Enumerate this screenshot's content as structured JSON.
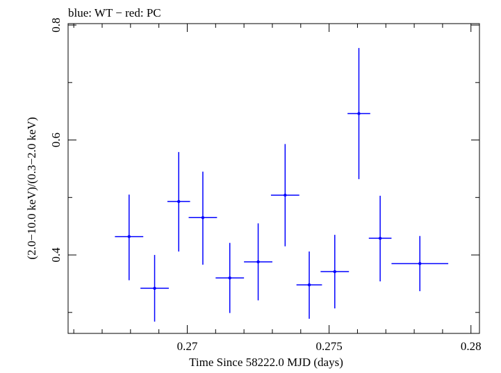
{
  "chart_data": {
    "type": "scatter",
    "title": "blue: WT − red: PC",
    "xlabel": "Time Since 58222.0 MJD (days)",
    "ylabel": "(2.0−10.0 keV)/(0.3−2.0 keV)",
    "xlim": [
      0.2658,
      0.2803
    ],
    "ylim": [
      0.2635,
      0.8025
    ],
    "x_ticks": [
      {
        "value": 0.27,
        "label": "0.27"
      },
      {
        "value": 0.275,
        "label": "0.275"
      },
      {
        "value": 0.28,
        "label": "0.28"
      }
    ],
    "x_minor_ticks": [
      0.266,
      0.267,
      0.268,
      0.269,
      0.271,
      0.272,
      0.273,
      0.274,
      0.276,
      0.277,
      0.278,
      0.279
    ],
    "y_ticks": [
      {
        "value": 0.4,
        "label": "0.4"
      },
      {
        "value": 0.6,
        "label": "0.6"
      },
      {
        "value": 0.8,
        "label": "0.8"
      }
    ],
    "y_minor_ticks": [
      0.3,
      0.5,
      0.7
    ],
    "grid": false,
    "legend": "none",
    "series": [
      {
        "name": "WT",
        "color": "#0000ff",
        "points": [
          {
            "x": 0.26795,
            "y": 0.432,
            "x_lo": 0.26745,
            "x_hi": 0.26845,
            "y_lo": 0.356,
            "y_hi": 0.505
          },
          {
            "x": 0.26885,
            "y": 0.342,
            "x_lo": 0.26835,
            "x_hi": 0.26935,
            "y_lo": 0.284,
            "y_hi": 0.4
          },
          {
            "x": 0.2697,
            "y": 0.493,
            "x_lo": 0.2693,
            "x_hi": 0.2701,
            "y_lo": 0.406,
            "y_hi": 0.579
          },
          {
            "x": 0.27055,
            "y": 0.465,
            "x_lo": 0.27005,
            "x_hi": 0.27105,
            "y_lo": 0.383,
            "y_hi": 0.545
          },
          {
            "x": 0.2715,
            "y": 0.36,
            "x_lo": 0.271,
            "x_hi": 0.272,
            "y_lo": 0.299,
            "y_hi": 0.421
          },
          {
            "x": 0.2725,
            "y": 0.388,
            "x_lo": 0.272,
            "x_hi": 0.273,
            "y_lo": 0.321,
            "y_hi": 0.455
          },
          {
            "x": 0.27345,
            "y": 0.504,
            "x_lo": 0.27295,
            "x_hi": 0.27395,
            "y_lo": 0.415,
            "y_hi": 0.593
          },
          {
            "x": 0.2743,
            "y": 0.348,
            "x_lo": 0.27385,
            "x_hi": 0.27475,
            "y_lo": 0.289,
            "y_hi": 0.406
          },
          {
            "x": 0.2752,
            "y": 0.371,
            "x_lo": 0.2747,
            "x_hi": 0.2757,
            "y_lo": 0.307,
            "y_hi": 0.435
          },
          {
            "x": 0.27605,
            "y": 0.646,
            "x_lo": 0.27565,
            "x_hi": 0.27645,
            "y_lo": 0.532,
            "y_hi": 0.76
          },
          {
            "x": 0.2768,
            "y": 0.429,
            "x_lo": 0.2764,
            "x_hi": 0.2772,
            "y_lo": 0.354,
            "y_hi": 0.503
          },
          {
            "x": 0.2782,
            "y": 0.385,
            "x_lo": 0.2772,
            "x_hi": 0.2792,
            "y_lo": 0.337,
            "y_hi": 0.433
          }
        ]
      }
    ]
  }
}
